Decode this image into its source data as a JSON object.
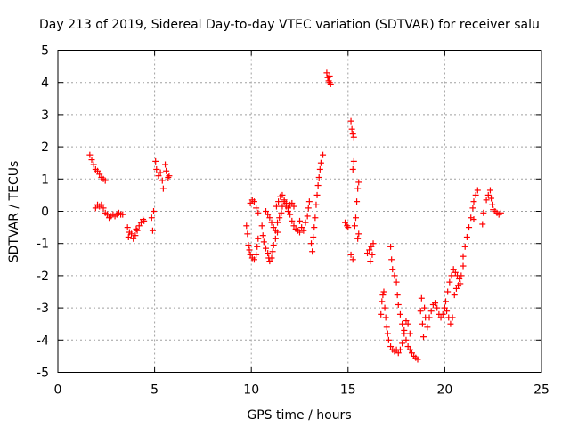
{
  "chart_data": {
    "type": "scatter",
    "title": "Day 213 of 2019, Sidereal Day-to-day VTEC variation (SDTVAR) for receiver salu",
    "xlabel": "GPS time / hours",
    "ylabel": "SDTVAR / TECUs",
    "xlim": [
      0,
      25
    ],
    "ylim": [
      -5,
      5
    ],
    "xticks": [
      0,
      5,
      10,
      15,
      20,
      25
    ],
    "xtick_labels": [
      "0",
      "5",
      "10",
      "15",
      "20",
      "25"
    ],
    "yticks": [
      -5,
      -4,
      -3,
      -2,
      -1,
      0,
      1,
      2,
      3,
      4,
      5
    ],
    "ytick_labels": [
      "-5",
      "-4",
      "-3",
      "-2",
      "-1",
      "0",
      "1",
      "2",
      "3",
      "4",
      "5"
    ],
    "grid": true,
    "marker": "+",
    "color": "#ff0000",
    "series": [
      {
        "name": "SDTVAR",
        "points": [
          [
            1.65,
            1.75
          ],
          [
            1.75,
            1.6
          ],
          [
            1.85,
            1.45
          ],
          [
            1.95,
            1.3
          ],
          [
            2.05,
            1.25
          ],
          [
            2.15,
            1.15
          ],
          [
            2.25,
            1.05
          ],
          [
            2.35,
            1.0
          ],
          [
            2.45,
            0.95
          ],
          [
            1.95,
            0.1
          ],
          [
            2.05,
            0.2
          ],
          [
            2.15,
            0.15
          ],
          [
            2.25,
            0.2
          ],
          [
            2.35,
            0.1
          ],
          [
            2.45,
            -0.05
          ],
          [
            2.55,
            -0.1
          ],
          [
            2.65,
            -0.2
          ],
          [
            2.75,
            -0.15
          ],
          [
            2.85,
            -0.1
          ],
          [
            2.95,
            -0.15
          ],
          [
            3.05,
            -0.1
          ],
          [
            3.15,
            -0.05
          ],
          [
            3.25,
            -0.1
          ],
          [
            3.35,
            -0.1
          ],
          [
            3.6,
            -0.5
          ],
          [
            3.65,
            -0.8
          ],
          [
            3.7,
            -0.65
          ],
          [
            3.8,
            -0.7
          ],
          [
            3.9,
            -0.85
          ],
          [
            4.0,
            -0.75
          ],
          [
            4.05,
            -0.55
          ],
          [
            4.1,
            -0.6
          ],
          [
            4.2,
            -0.45
          ],
          [
            4.3,
            -0.35
          ],
          [
            4.4,
            -0.25
          ],
          [
            4.45,
            -0.3
          ],
          [
            4.85,
            -0.2
          ],
          [
            4.9,
            -0.6
          ],
          [
            4.95,
            0.0
          ],
          [
            5.05,
            1.55
          ],
          [
            5.1,
            1.3
          ],
          [
            5.2,
            1.1
          ],
          [
            5.3,
            1.2
          ],
          [
            5.4,
            0.95
          ],
          [
            5.45,
            0.7
          ],
          [
            5.55,
            1.45
          ],
          [
            5.6,
            1.25
          ],
          [
            5.7,
            1.05
          ],
          [
            5.75,
            1.1
          ],
          [
            9.75,
            -0.45
          ],
          [
            9.8,
            -0.7
          ],
          [
            9.85,
            -1.05
          ],
          [
            9.9,
            -1.2
          ],
          [
            9.95,
            -1.35
          ],
          [
            10.05,
            -1.45
          ],
          [
            10.15,
            -1.5
          ],
          [
            10.25,
            -1.35
          ],
          [
            10.3,
            -1.1
          ],
          [
            10.35,
            -0.85
          ],
          [
            9.95,
            0.25
          ],
          [
            10.05,
            0.35
          ],
          [
            10.15,
            0.3
          ],
          [
            10.25,
            0.1
          ],
          [
            10.35,
            -0.05
          ],
          [
            10.55,
            -0.45
          ],
          [
            10.6,
            -0.75
          ],
          [
            10.65,
            -0.95
          ],
          [
            10.75,
            -1.15
          ],
          [
            10.85,
            -1.3
          ],
          [
            10.9,
            -1.45
          ],
          [
            10.95,
            -1.55
          ],
          [
            11.05,
            -1.45
          ],
          [
            11.1,
            -1.25
          ],
          [
            11.15,
            -1.05
          ],
          [
            11.25,
            -0.85
          ],
          [
            11.35,
            -0.65
          ],
          [
            10.75,
            0.0
          ],
          [
            10.85,
            -0.1
          ],
          [
            10.95,
            -0.2
          ],
          [
            11.05,
            -0.35
          ],
          [
            11.15,
            -0.5
          ],
          [
            11.25,
            -0.6
          ],
          [
            11.35,
            -0.35
          ],
          [
            11.45,
            -0.2
          ],
          [
            11.55,
            -0.05
          ],
          [
            11.6,
            0.15
          ],
          [
            11.7,
            0.3
          ],
          [
            11.8,
            0.25
          ],
          [
            11.9,
            0.1
          ],
          [
            12.0,
            -0.1
          ],
          [
            12.1,
            -0.3
          ],
          [
            12.2,
            -0.45
          ],
          [
            12.3,
            -0.55
          ],
          [
            12.4,
            -0.6
          ],
          [
            12.5,
            -0.65
          ],
          [
            11.3,
            0.15
          ],
          [
            11.4,
            0.3
          ],
          [
            11.5,
            0.45
          ],
          [
            11.6,
            0.5
          ],
          [
            11.7,
            0.35
          ],
          [
            11.8,
            0.15
          ],
          [
            11.9,
            0.0
          ],
          [
            12.0,
            0.2
          ],
          [
            12.1,
            0.25
          ],
          [
            12.2,
            0.15
          ],
          [
            12.5,
            -0.3
          ],
          [
            12.6,
            -0.5
          ],
          [
            12.7,
            -0.6
          ],
          [
            12.8,
            -0.35
          ],
          [
            12.9,
            -0.15
          ],
          [
            12.95,
            0.1
          ],
          [
            13.0,
            0.3
          ],
          [
            13.1,
            -1.0
          ],
          [
            13.15,
            -1.25
          ],
          [
            13.2,
            -0.8
          ],
          [
            13.25,
            -0.5
          ],
          [
            13.3,
            -0.2
          ],
          [
            13.35,
            0.2
          ],
          [
            13.4,
            0.5
          ],
          [
            13.45,
            0.8
          ],
          [
            13.5,
            1.05
          ],
          [
            13.55,
            1.3
          ],
          [
            13.6,
            1.5
          ],
          [
            13.7,
            1.75
          ],
          [
            13.9,
            4.3
          ],
          [
            13.95,
            4.15
          ],
          [
            14.0,
            4.05
          ],
          [
            14.05,
            4.0
          ],
          [
            14.1,
            3.95
          ],
          [
            14.05,
            4.2
          ],
          [
            14.85,
            -0.35
          ],
          [
            14.95,
            -0.45
          ],
          [
            15.0,
            -0.5
          ],
          [
            15.15,
            2.8
          ],
          [
            15.2,
            2.55
          ],
          [
            15.25,
            2.4
          ],
          [
            15.3,
            2.3
          ],
          [
            15.25,
            1.3
          ],
          [
            15.3,
            1.55
          ],
          [
            15.15,
            -1.35
          ],
          [
            15.25,
            -1.5
          ],
          [
            15.35,
            -0.45
          ],
          [
            15.4,
            -0.2
          ],
          [
            15.45,
            0.3
          ],
          [
            15.5,
            0.7
          ],
          [
            15.55,
            0.9
          ],
          [
            15.5,
            -0.85
          ],
          [
            15.55,
            -0.7
          ],
          [
            16.0,
            -1.3
          ],
          [
            16.1,
            -1.2
          ],
          [
            16.2,
            -1.1
          ],
          [
            16.3,
            -1.0
          ],
          [
            16.15,
            -1.55
          ],
          [
            16.25,
            -1.35
          ],
          [
            16.7,
            -3.2
          ],
          [
            16.75,
            -2.8
          ],
          [
            16.8,
            -2.6
          ],
          [
            16.85,
            -2.5
          ],
          [
            16.9,
            -3.0
          ],
          [
            16.95,
            -3.3
          ],
          [
            17.0,
            -3.6
          ],
          [
            17.05,
            -3.8
          ],
          [
            17.1,
            -4.0
          ],
          [
            17.2,
            -4.2
          ],
          [
            17.3,
            -4.3
          ],
          [
            17.4,
            -4.35
          ],
          [
            17.5,
            -4.3
          ],
          [
            17.6,
            -4.4
          ],
          [
            17.7,
            -4.3
          ],
          [
            17.8,
            -4.1
          ],
          [
            17.2,
            -1.1
          ],
          [
            17.25,
            -1.5
          ],
          [
            17.3,
            -1.8
          ],
          [
            17.4,
            -2.0
          ],
          [
            17.5,
            -2.2
          ],
          [
            17.55,
            -2.6
          ],
          [
            17.6,
            -2.9
          ],
          [
            17.7,
            -3.2
          ],
          [
            17.8,
            -3.5
          ],
          [
            17.9,
            -3.8
          ],
          [
            18.0,
            -4.0
          ],
          [
            18.1,
            -4.2
          ],
          [
            18.2,
            -4.3
          ],
          [
            18.3,
            -4.4
          ],
          [
            18.4,
            -4.5
          ],
          [
            18.5,
            -4.55
          ],
          [
            18.6,
            -4.6
          ],
          [
            17.9,
            -3.7
          ],
          [
            18.0,
            -3.4
          ],
          [
            18.1,
            -3.5
          ],
          [
            18.2,
            -3.8
          ],
          [
            18.75,
            -3.1
          ],
          [
            18.8,
            -2.7
          ],
          [
            18.85,
            -3.5
          ],
          [
            18.9,
            -3.9
          ],
          [
            18.95,
            -3.0
          ],
          [
            19.0,
            -3.3
          ],
          [
            19.1,
            -3.6
          ],
          [
            19.2,
            -3.3
          ],
          [
            19.3,
            -3.1
          ],
          [
            19.4,
            -2.9
          ],
          [
            19.5,
            -2.85
          ],
          [
            19.6,
            -3.0
          ],
          [
            19.7,
            -3.2
          ],
          [
            19.8,
            -3.3
          ],
          [
            19.9,
            -3.2
          ],
          [
            20.0,
            -3.0
          ],
          [
            20.1,
            -3.1
          ],
          [
            20.2,
            -3.3
          ],
          [
            20.3,
            -3.5
          ],
          [
            20.4,
            -3.3
          ],
          [
            20.05,
            -2.8
          ],
          [
            20.15,
            -2.5
          ],
          [
            20.25,
            -2.2
          ],
          [
            20.35,
            -2.0
          ],
          [
            20.45,
            -1.8
          ],
          [
            20.55,
            -1.9
          ],
          [
            20.65,
            -2.0
          ],
          [
            20.75,
            -2.1
          ],
          [
            20.85,
            -2.0
          ],
          [
            20.95,
            -1.7
          ],
          [
            20.5,
            -2.6
          ],
          [
            20.6,
            -2.4
          ],
          [
            20.7,
            -2.3
          ],
          [
            20.8,
            -2.25
          ],
          [
            20.95,
            -1.4
          ],
          [
            21.05,
            -1.1
          ],
          [
            21.15,
            -0.8
          ],
          [
            21.25,
            -0.5
          ],
          [
            21.35,
            -0.2
          ],
          [
            21.45,
            0.1
          ],
          [
            21.5,
            0.3
          ],
          [
            21.6,
            0.5
          ],
          [
            21.7,
            0.65
          ],
          [
            21.5,
            -0.25
          ],
          [
            21.95,
            -0.4
          ],
          [
            22.0,
            -0.05
          ],
          [
            22.15,
            0.35
          ],
          [
            22.25,
            0.5
          ],
          [
            22.35,
            0.65
          ],
          [
            22.4,
            0.4
          ],
          [
            22.45,
            0.2
          ],
          [
            22.5,
            0.05
          ],
          [
            22.6,
            0.0
          ],
          [
            22.7,
            -0.05
          ],
          [
            22.8,
            -0.1
          ],
          [
            22.9,
            -0.05
          ]
        ]
      }
    ]
  }
}
